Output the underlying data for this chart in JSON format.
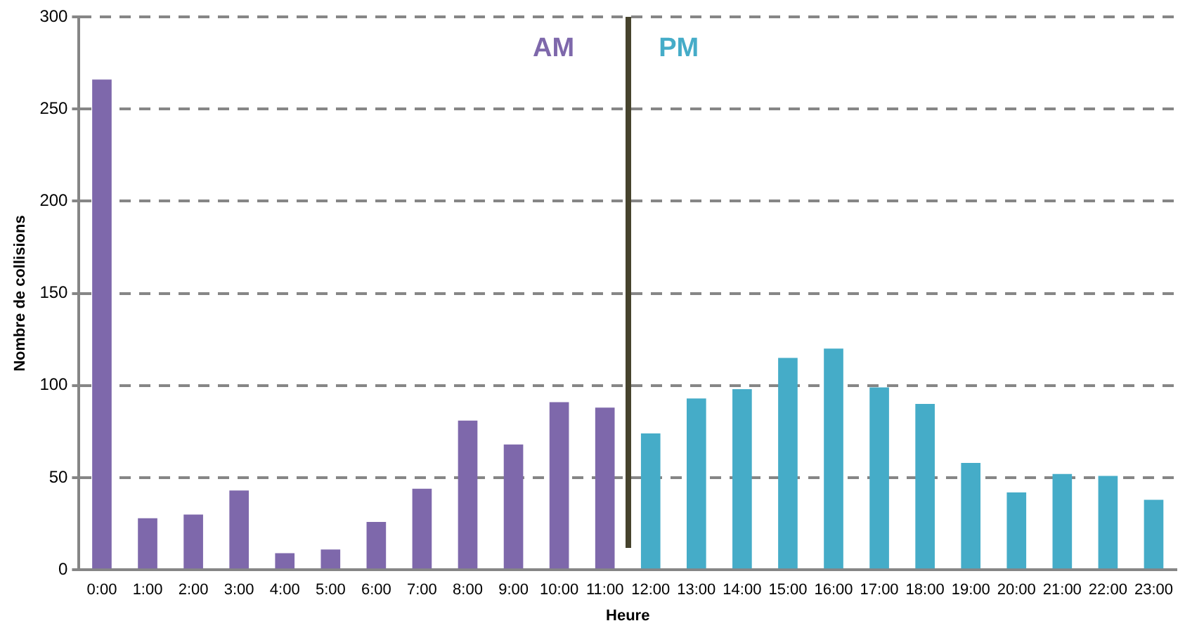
{
  "chart_data": {
    "type": "bar",
    "xlabel": "Heure",
    "ylabel": "Nombre de collisions",
    "categories": [
      "0:00",
      "1:00",
      "2:00",
      "3:00",
      "4:00",
      "5:00",
      "6:00",
      "7:00",
      "8:00",
      "9:00",
      "10:00",
      "11:00",
      "12:00",
      "13:00",
      "14:00",
      "15:00",
      "16:00",
      "17:00",
      "18:00",
      "19:00",
      "20:00",
      "21:00",
      "22:00",
      "23:00"
    ],
    "values": [
      266,
      28,
      30,
      43,
      9,
      11,
      26,
      44,
      81,
      68,
      91,
      88,
      74,
      93,
      98,
      115,
      120,
      99,
      90,
      58,
      42,
      52,
      51,
      38
    ],
    "colors": [
      "#7e68ab",
      "#7e68ab",
      "#7e68ab",
      "#7e68ab",
      "#7e68ab",
      "#7e68ab",
      "#7e68ab",
      "#7e68ab",
      "#7e68ab",
      "#7e68ab",
      "#7e68ab",
      "#7e68ab",
      "#45acc8",
      "#45acc8",
      "#45acc8",
      "#45acc8",
      "#45acc8",
      "#45acc8",
      "#45acc8",
      "#45acc8",
      "#45acc8",
      "#45acc8",
      "#45acc8",
      "#45acc8"
    ],
    "ylim": [
      0,
      300
    ],
    "yticks": [
      0,
      50,
      100,
      150,
      200,
      250,
      300
    ],
    "grid": "y",
    "legend": false,
    "annotations": [
      "AM",
      "PM"
    ]
  }
}
